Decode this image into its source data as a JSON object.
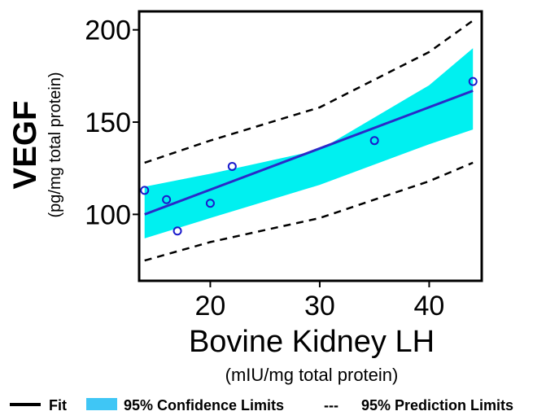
{
  "chart_data": {
    "type": "scatter",
    "x": [
      14,
      16,
      17,
      20,
      22,
      35,
      44
    ],
    "y": [
      113,
      108,
      91,
      106,
      126,
      140,
      172
    ],
    "fit": {
      "x": [
        14,
        44
      ],
      "y": [
        100,
        167
      ]
    },
    "confidence_band": {
      "x": [
        14,
        20,
        30,
        40,
        44
      ],
      "lower": [
        87,
        98,
        116,
        138,
        146
      ],
      "upper": [
        115,
        122,
        135,
        170,
        190
      ]
    },
    "prediction_limits": {
      "x": [
        14,
        20,
        30,
        40,
        44
      ],
      "lower": [
        75,
        85,
        98,
        118,
        128
      ],
      "upper": [
        128,
        140,
        158,
        188,
        205
      ]
    },
    "xlim": [
      13.5,
      44.8
    ],
    "ylim": [
      64,
      210
    ],
    "xticks": [
      "20",
      "30",
      "40"
    ],
    "yticks": [
      "100",
      "150",
      "200"
    ],
    "xticks_values": [
      20,
      30,
      40
    ],
    "yticks_values": [
      100,
      150,
      200
    ],
    "xlabel": "Bovine Kidney LH",
    "xlabel_sub": "(mIU/mg total protein)",
    "ylabel": "VEGF",
    "ylabel_sub": "(pg/mg total protein)",
    "legend": {
      "fit": "Fit",
      "confidence": "95% Confidence Limits",
      "prediction_symbol": "---",
      "prediction": "95% Prediction Limits"
    },
    "colors": {
      "band": "#00f0f0",
      "band_legend": "#3fc6f5",
      "fit": "#2a2ac8",
      "points": "#1a1acc",
      "dashed": "#000000"
    }
  }
}
